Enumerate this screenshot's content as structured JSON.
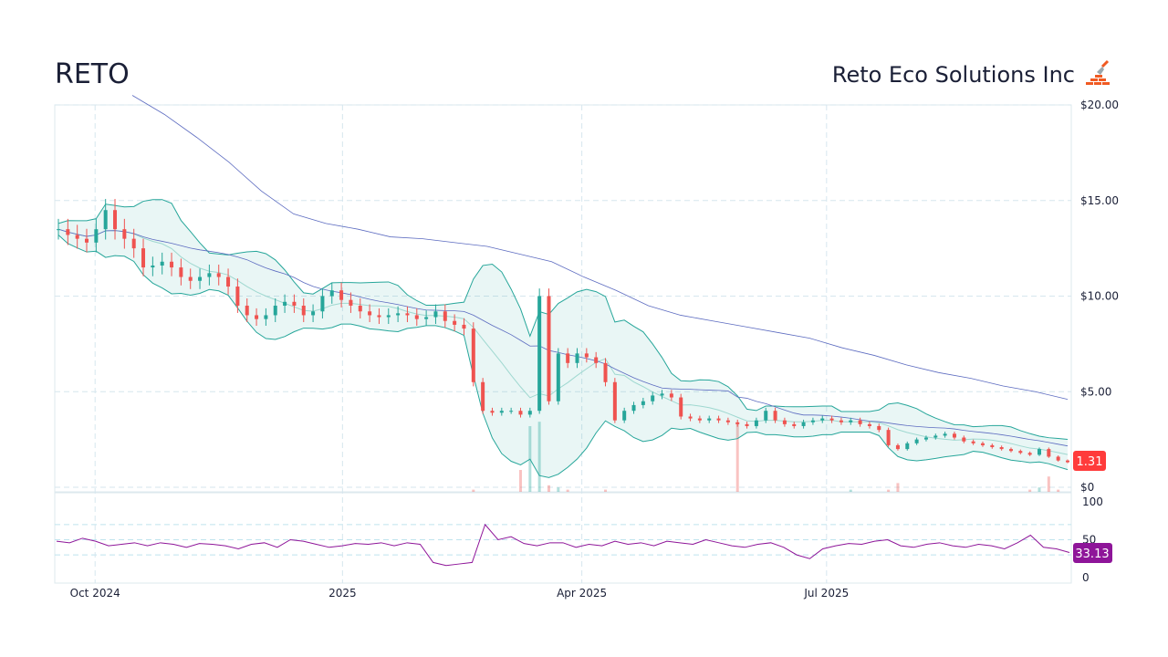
{
  "header": {
    "ticker": "RETO",
    "company": "Reto Eco Solutions Inc",
    "logo_icon": "trowel-bricks-icon"
  },
  "chart_data": {
    "type": "candlestick",
    "price_axis": {
      "ticks": [
        "$20.00",
        "$15.00",
        "$10.00",
        "$5.00",
        "$0"
      ],
      "values": [
        20,
        15,
        10,
        5,
        0
      ],
      "ylim": [
        0,
        20
      ]
    },
    "rsi_axis": {
      "ticks": [
        "100",
        "50",
        "0"
      ],
      "values": [
        100,
        50,
        0
      ],
      "ylim": [
        0,
        100
      ]
    },
    "x_ticks": [
      {
        "label": "Oct 2024",
        "day": 15
      },
      {
        "label": "2025",
        "day": 107
      },
      {
        "label": "Apr 2025",
        "day": 196
      },
      {
        "label": "Jul 2025",
        "day": 287
      }
    ],
    "total_days": 378,
    "closes": [
      13.5,
      13.2,
      13.0,
      12.8,
      13.5,
      14.5,
      13.5,
      13.0,
      12.5,
      11.5,
      11.6,
      11.8,
      11.5,
      11.0,
      10.8,
      11.0,
      11.2,
      11.0,
      10.5,
      9.5,
      9.0,
      8.8,
      9.0,
      9.5,
      9.7,
      9.5,
      9.0,
      9.2,
      10.0,
      10.3,
      9.8,
      9.5,
      9.2,
      9.0,
      8.9,
      9.0,
      9.1,
      9.0,
      8.8,
      8.9,
      9.2,
      8.7,
      8.5,
      8.3,
      5.5,
      4.0,
      3.9,
      4.0,
      4.0,
      3.8,
      4.0,
      10.0,
      4.5,
      7.0,
      6.5,
      7.0,
      6.8,
      6.5,
      5.5,
      3.5,
      4.0,
      4.3,
      4.5,
      4.8,
      4.9,
      4.7,
      3.7,
      3.6,
      3.5,
      3.6,
      3.5,
      3.4,
      3.3,
      3.2,
      3.5,
      4.0,
      3.5,
      3.3,
      3.2,
      3.4,
      3.5,
      3.6,
      3.5,
      3.4,
      3.5,
      3.3,
      3.2,
      3.0,
      2.2,
      2.0,
      2.3,
      2.5,
      2.6,
      2.7,
      2.8,
      2.6,
      2.4,
      2.3,
      2.2,
      2.1,
      2.0,
      1.9,
      1.8,
      1.7,
      2.0,
      1.6,
      1.4,
      1.31
    ],
    "ma200": [
      20.5,
      19.5,
      18.3,
      17.0,
      15.5,
      14.3,
      13.8,
      13.5,
      13.1,
      13.0,
      12.8,
      12.6,
      12.2,
      11.8,
      11.0,
      10.3,
      9.5,
      9.0,
      8.7,
      8.4,
      8.1,
      7.8,
      7.3,
      6.9,
      6.4,
      6.0,
      5.7,
      5.3,
      5.0,
      4.6
    ],
    "volume": [
      0,
      0,
      0,
      0,
      0,
      0,
      0,
      0,
      0,
      0,
      0,
      0,
      0,
      0,
      0,
      0,
      0,
      0,
      0,
      0,
      0,
      0,
      0,
      0,
      0,
      0,
      0,
      0,
      0,
      0,
      0,
      0,
      0,
      0,
      0,
      0,
      0,
      0,
      0,
      0,
      0,
      0,
      0,
      0,
      0.1,
      0,
      0,
      0,
      0,
      1,
      3,
      3.2,
      0.3,
      0.2,
      0.1,
      0,
      0,
      0,
      0.1,
      0,
      0,
      0,
      0,
      0,
      0,
      0,
      0,
      0,
      0,
      0,
      0,
      0,
      3.1,
      0,
      0,
      0,
      0,
      0,
      0,
      0,
      0,
      0,
      0,
      0,
      0.1,
      0,
      0,
      0,
      0.1,
      0.4,
      0,
      0,
      0,
      0,
      0,
      0,
      0,
      0,
      0,
      0,
      0,
      0,
      0,
      0.1,
      0.2,
      0.7,
      0.1,
      0
    ],
    "rsi": [
      48,
      46,
      52,
      48,
      42,
      44,
      46,
      42,
      46,
      44,
      40,
      45,
      44,
      42,
      38,
      44,
      46,
      40,
      50,
      48,
      44,
      40,
      42,
      45,
      44,
      46,
      42,
      46,
      44,
      20,
      16,
      18,
      20,
      70,
      50,
      54,
      45,
      42,
      46,
      46,
      40,
      44,
      42,
      48,
      44,
      46,
      42,
      48,
      46,
      44,
      50,
      46,
      42,
      40,
      44,
      46,
      40,
      30,
      25,
      38,
      42,
      45,
      44,
      48,
      50,
      42,
      40,
      44,
      46,
      42,
      40,
      44,
      42,
      38,
      46,
      56,
      40,
      38,
      33.13
    ],
    "last_price": "1.31",
    "last_rsi": "33.13",
    "colors": {
      "up": "#26a69a",
      "down": "#ef5350",
      "band": "#26a69a",
      "ma": "#5c6bc0",
      "rsi": "#8e1599"
    }
  }
}
